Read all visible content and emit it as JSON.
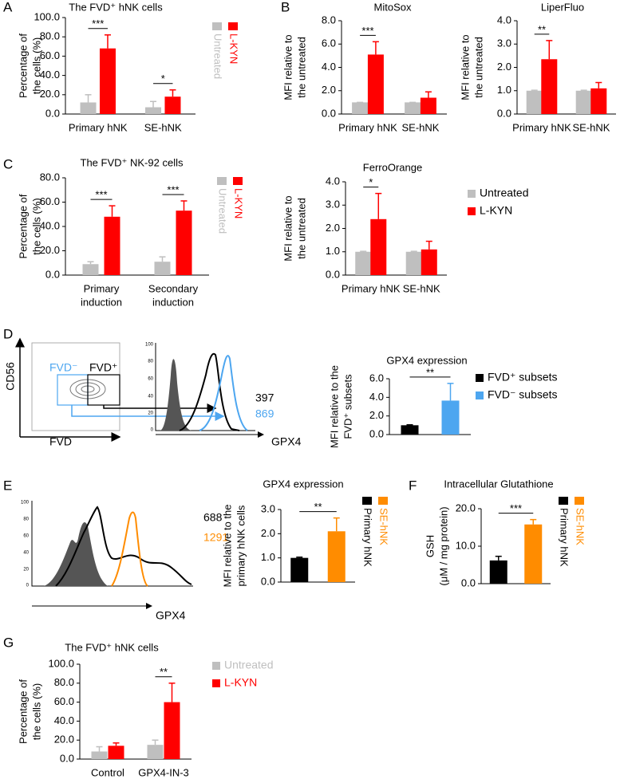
{
  "panel_labels": [
    "A",
    "B",
    "C",
    "D",
    "E",
    "F",
    "G"
  ],
  "flow": {
    "D": {
      "y_label": "CD56",
      "x_label": "FVD",
      "gates": [
        "FVD⁻",
        "FVD⁺"
      ],
      "hist_x_label": "GPX4",
      "mfi": [
        397,
        869
      ],
      "hist_yticks": [
        100,
        80,
        60,
        40,
        20,
        0
      ]
    },
    "E": {
      "x_label": "GPX4",
      "mfi": [
        688,
        1291
      ],
      "yticks": [
        100,
        80,
        60,
        40,
        20,
        0
      ]
    }
  },
  "chart_data": [
    {
      "type": "bar",
      "title": "The FVD⁺ hNK cells",
      "ylabel": [
        "Percentage of",
        "the cells (%)"
      ],
      "categories": [
        [
          "Primary hNK"
        ],
        [
          "SE-hNK"
        ]
      ],
      "series": [
        {
          "name": "Untreated",
          "color": "#bfbfbf",
          "values": [
            12,
            7
          ],
          "errors": [
            8,
            6
          ]
        },
        {
          "name": "L-KYN",
          "color": "#ff0000",
          "values": [
            68,
            18
          ],
          "errors": [
            14,
            7
          ]
        }
      ],
      "significance": [
        "***",
        "*"
      ],
      "legend": "rotated",
      "ylim": [
        0,
        100
      ],
      "yticks": [
        {
          "value": 0,
          "label": "0.0"
        },
        {
          "value": 20,
          "label": "20.0"
        },
        {
          "value": 40,
          "label": "40.0"
        },
        {
          "value": 60,
          "label": "60.0"
        },
        {
          "value": 80,
          "label": "80.0"
        },
        {
          "value": 100,
          "label": "100.0"
        }
      ]
    },
    {
      "type": "bar",
      "title": "MitoSox",
      "ylabel": [
        "MFI relative to",
        "the untreated"
      ],
      "categories": [
        [
          "Primary hNK"
        ],
        [
          "SE-hNK"
        ]
      ],
      "series": [
        {
          "color": "#bfbfbf",
          "values": [
            1,
            1
          ],
          "errors": [
            0,
            0
          ]
        },
        {
          "color": "#ff0000",
          "values": [
            5.1,
            1.4
          ],
          "errors": [
            1.1,
            0.5
          ]
        }
      ],
      "significance": [
        "***",
        null
      ],
      "ylim": [
        0,
        8
      ],
      "yticks": [
        {
          "value": 0,
          "label": "0.0"
        },
        {
          "value": 2,
          "label": "2.0"
        },
        {
          "value": 4,
          "label": "4.0"
        },
        {
          "value": 6,
          "label": "6.0"
        },
        {
          "value": 8,
          "label": "8.0"
        }
      ]
    },
    {
      "type": "bar",
      "title": "LiperFluo",
      "ylabel": [
        "MFI relative to",
        "the untreated"
      ],
      "categories": [
        [
          "Primary hNK"
        ],
        [
          "SE-hNK"
        ]
      ],
      "series": [
        {
          "color": "#bfbfbf",
          "values": [
            1,
            1
          ],
          "errors": [
            0.02,
            0.02
          ]
        },
        {
          "color": "#ff0000",
          "values": [
            2.35,
            1.1
          ],
          "errors": [
            0.8,
            0.25
          ]
        }
      ],
      "significance": [
        "**",
        null
      ],
      "ylim": [
        0,
        4
      ],
      "yticks": [
        {
          "value": 0,
          "label": "0.0"
        },
        {
          "value": 1,
          "label": "1.0"
        },
        {
          "value": 2,
          "label": "2.0"
        },
        {
          "value": 3,
          "label": "3.0"
        },
        {
          "value": 4,
          "label": "4.0"
        }
      ]
    },
    {
      "type": "bar",
      "title": "The FVD⁺ NK-92 cells",
      "ylabel": [
        "Percentage of",
        "the cells (%)"
      ],
      "categories": [
        [
          "Primary",
          "induction"
        ],
        [
          "Secondary",
          "induction"
        ]
      ],
      "series": [
        {
          "name": "Untreated",
          "color": "#bfbfbf",
          "values": [
            9,
            11
          ],
          "errors": [
            2,
            4
          ]
        },
        {
          "name": "L-KYN",
          "color": "#ff0000",
          "values": [
            48,
            53
          ],
          "errors": [
            9,
            8
          ]
        }
      ],
      "significance": [
        "***",
        "***"
      ],
      "legend": "rotated",
      "ylim": [
        0,
        80
      ],
      "yticks": [
        {
          "value": 0,
          "label": "0.0"
        },
        {
          "value": 20,
          "label": "20.0"
        },
        {
          "value": 40,
          "label": "40.0"
        },
        {
          "value": 60,
          "label": "60.0"
        },
        {
          "value": 80,
          "label": "80.0"
        }
      ]
    },
    {
      "type": "bar",
      "title": "FerroOrange",
      "ylabel": [
        "MFI relative to",
        "the untreated"
      ],
      "categories": [
        [
          "Primary hNK"
        ],
        [
          "SE-hNK"
        ]
      ],
      "series": [
        {
          "name": "Untreated",
          "color": "#bfbfbf",
          "values": [
            1,
            1
          ],
          "errors": [
            0.02,
            0.02
          ]
        },
        {
          "name": "L-KYN",
          "color": "#ff0000",
          "values": [
            2.4,
            1.1
          ],
          "errors": [
            1.1,
            0.35
          ]
        }
      ],
      "significance": [
        "*",
        null
      ],
      "legend": "right",
      "ylim": [
        0,
        4
      ],
      "yticks": [
        {
          "value": 0,
          "label": "0.0"
        },
        {
          "value": 1,
          "label": "1.0"
        },
        {
          "value": 2,
          "label": "2.0"
        },
        {
          "value": 3,
          "label": "3.0"
        },
        {
          "value": 4,
          "label": "4.0"
        }
      ]
    },
    {
      "type": "bar",
      "title": "GPX4 expression",
      "ylabel": [
        "MFI relative to the",
        "FVD⁺ subsets"
      ],
      "categories": [
        null
      ],
      "series": [
        {
          "name": "FVD⁺ subsets",
          "color": "#000000",
          "values": [
            1.0
          ],
          "errors": [
            0.05
          ]
        },
        {
          "name": "FVD⁻ subsets",
          "color": "#4da6f0",
          "values": [
            3.65
          ],
          "errors": [
            1.85
          ]
        }
      ],
      "significance": [
        "**"
      ],
      "legend": "right",
      "ylim": [
        0,
        6
      ],
      "yticks": [
        {
          "value": 0,
          "label": "0.0"
        },
        {
          "value": 2,
          "label": "2.0"
        },
        {
          "value": 4,
          "label": "4.0"
        },
        {
          "value": 6,
          "label": "6.0"
        }
      ]
    },
    {
      "type": "bar",
      "title": "GPX4 expression",
      "ylabel": [
        "MFI relative to the",
        "primary hNK cells"
      ],
      "categories": [
        null
      ],
      "series": [
        {
          "name": "Primary hNK",
          "color": "#000000",
          "values": [
            1.0
          ],
          "errors": [
            0.03
          ]
        },
        {
          "name": "SE-hNK",
          "color": "#ff8c00",
          "values": [
            2.1
          ],
          "errors": [
            0.55
          ]
        }
      ],
      "significance": [
        "**"
      ],
      "legend": "rotated",
      "ylim": [
        0,
        3
      ],
      "yticks": [
        {
          "value": 0,
          "label": "0.0"
        },
        {
          "value": 1,
          "label": "1.0"
        },
        {
          "value": 2,
          "label": "2.0"
        },
        {
          "value": 3,
          "label": "3.0"
        }
      ]
    },
    {
      "type": "bar",
      "title": "Intracellular Glutathione",
      "ylabel": [
        "GSH",
        "(μM / mg protein)"
      ],
      "categories": [
        null
      ],
      "series": [
        {
          "name": "Primary hNK",
          "color": "#000000",
          "values": [
            6.2
          ],
          "errors": [
            1.1
          ]
        },
        {
          "name": "SE-hNK",
          "color": "#ff8c00",
          "values": [
            15.8
          ],
          "errors": [
            1.3
          ]
        }
      ],
      "significance": [
        "***"
      ],
      "legend": "rotated",
      "ylim": [
        0,
        20
      ],
      "yticks": [
        {
          "value": 0,
          "label": "0.0"
        },
        {
          "value": 10,
          "label": "10.0"
        },
        {
          "value": 20,
          "label": "20.0"
        }
      ]
    },
    {
      "type": "bar",
      "title": "The FVD⁺ hNK cells",
      "ylabel": [
        "Percentage of",
        "the cells (%)"
      ],
      "categories": [
        [
          "Control"
        ],
        [
          "GPX4-IN-3"
        ]
      ],
      "series": [
        {
          "name": "Untreated",
          "color": "#bfbfbf",
          "values": [
            8,
            15
          ],
          "errors": [
            5,
            5
          ]
        },
        {
          "name": "L-KYN",
          "color": "#ff0000",
          "values": [
            14,
            60
          ],
          "errors": [
            3,
            20
          ]
        }
      ],
      "significance": [
        null,
        "**"
      ],
      "legend": "right-colored",
      "ylim": [
        0,
        100
      ],
      "yticks": [
        {
          "value": 0,
          "label": "0.0"
        },
        {
          "value": 20,
          "label": "20.0"
        },
        {
          "value": 40,
          "label": "40.0"
        },
        {
          "value": 60,
          "label": "60.0"
        },
        {
          "value": 80,
          "label": "80.0"
        },
        {
          "value": 100,
          "label": "100.0"
        }
      ]
    }
  ]
}
